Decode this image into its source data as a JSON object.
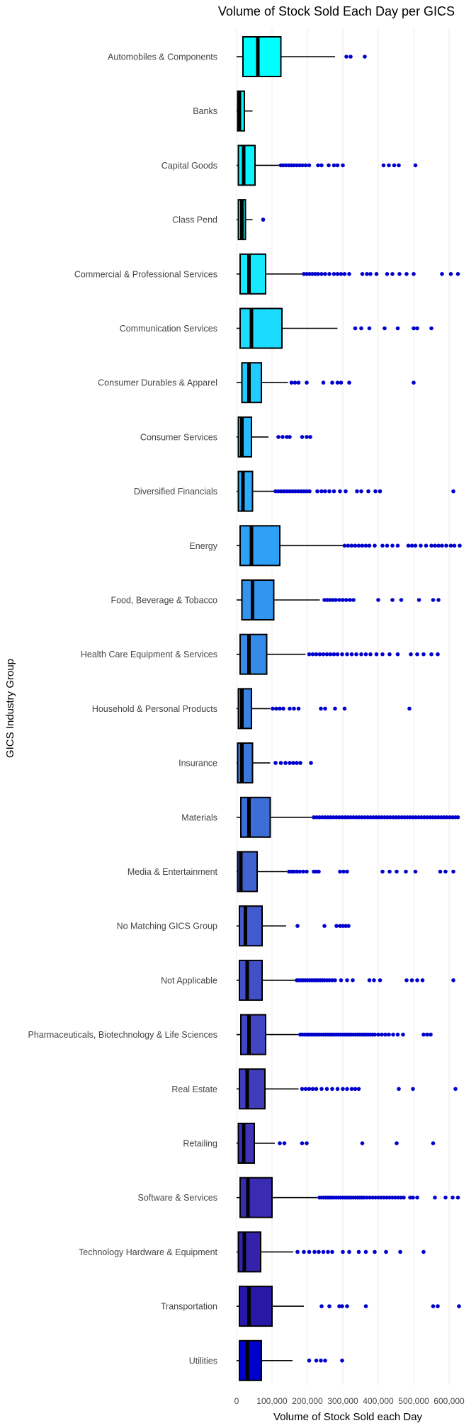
{
  "chart_data": {
    "type": "boxplot",
    "title": "Volume of Stock Sold Each Day per GICS",
    "xlabel": "Volume of Stock Sold each Day",
    "ylabel": "GICS Industry Group",
    "xlim": [
      -5000,
      680000
    ],
    "x_ticks": [
      0,
      100000,
      200000,
      300000,
      400000,
      500000,
      600000
    ],
    "x_tick_labels": [
      "0",
      "100,000",
      "200,000",
      "300,000",
      "400,000",
      "500,000",
      "600,000"
    ],
    "grid": "vertical",
    "outlier_color": "#0000cc",
    "categories": [
      {
        "name": "Automobiles & Components",
        "color": "#00ffff",
        "q1": 18000,
        "median": 60000,
        "q3": 125000,
        "whisker_low": 0,
        "whisker_high": 278000,
        "outliers": [
          310000,
          322000,
          362000
        ]
      },
      {
        "name": "Banks",
        "color": "#05faff",
        "q1": 3000,
        "median": 8000,
        "q3": 22000,
        "whisker_low": 0,
        "whisker_high": 45000,
        "outliers": []
      },
      {
        "name": "Capital Goods",
        "color": "#0af4ff",
        "q1": 5000,
        "median": 20000,
        "q3": 52000,
        "whisker_low": 0,
        "whisker_high": 120000,
        "outliers": [
          125000,
          132000,
          140000,
          148000,
          155000,
          162000,
          170000,
          178000,
          186000,
          195000,
          205000,
          230000,
          240000,
          260000,
          275000,
          285000,
          300000,
          415000,
          430000,
          445000,
          458000,
          505000
        ]
      },
      {
        "name": "Class Pend",
        "color": "#10efff",
        "q1": 5000,
        "median": 15000,
        "q3": 25000,
        "whisker_low": 0,
        "whisker_high": 45000,
        "outliers": [
          75000
        ]
      },
      {
        "name": "Commercial & Professional Services",
        "color": "#15e8ff",
        "q1": 10000,
        "median": 35000,
        "q3": 82000,
        "whisker_low": 0,
        "whisker_high": 185000,
        "outliers": [
          190000,
          198000,
          206000,
          214000,
          222000,
          230000,
          240000,
          250000,
          262000,
          275000,
          285000,
          295000,
          305000,
          318000,
          355000,
          368000,
          378000,
          395000,
          425000,
          440000,
          460000,
          480000,
          500000,
          580000,
          605000,
          625000
        ]
      },
      {
        "name": "Communication Services",
        "color": "#1bdbff",
        "q1": 10000,
        "median": 42000,
        "q3": 128000,
        "whisker_low": 0,
        "whisker_high": 285000,
        "outliers": [
          335000,
          352000,
          375000,
          418000,
          455000,
          500000,
          510000,
          550000
        ]
      },
      {
        "name": "Consumer Durables & Apparel",
        "color": "#20ccff",
        "q1": 15000,
        "median": 35000,
        "q3": 70000,
        "whisker_low": 0,
        "whisker_high": 145000,
        "outliers": [
          155000,
          165000,
          175000,
          198000,
          245000,
          270000,
          285000,
          295000,
          318000,
          500000
        ]
      },
      {
        "name": "Consumer Services",
        "color": "#25bdff",
        "q1": 5000,
        "median": 15000,
        "q3": 42000,
        "whisker_low": 0,
        "whisker_high": 90000,
        "outliers": [
          118000,
          130000,
          142000,
          150000,
          185000,
          198000,
          208000
        ]
      },
      {
        "name": "Diversified Financials",
        "color": "#2aadff",
        "q1": 5000,
        "median": 18000,
        "q3": 45000,
        "whisker_low": 0,
        "whisker_high": 105000,
        "outliers": [
          110000,
          118000,
          126000,
          134000,
          142000,
          150000,
          158000,
          166000,
          174000,
          182000,
          190000,
          198000,
          206000,
          228000,
          240000,
          250000,
          262000,
          275000,
          292000,
          308000,
          340000,
          352000,
          372000,
          392000,
          405000,
          612000
        ]
      },
      {
        "name": "Energy",
        "color": "#2ea0f5",
        "q1": 10000,
        "median": 42000,
        "q3": 122000,
        "whisker_low": 0,
        "whisker_high": 300000,
        "outliers": [
          305000,
          315000,
          325000,
          335000,
          345000,
          355000,
          365000,
          375000,
          390000,
          412000,
          425000,
          440000,
          455000,
          485000,
          495000,
          505000,
          520000,
          535000,
          550000,
          560000,
          570000,
          580000,
          592000,
          605000,
          615000,
          630000
        ]
      },
      {
        "name": "Food, Beverage & Tobacco",
        "color": "#3296ee",
        "q1": 15000,
        "median": 45000,
        "q3": 105000,
        "whisker_low": 0,
        "whisker_high": 235000,
        "outliers": [
          248000,
          256000,
          264000,
          272000,
          280000,
          290000,
          300000,
          310000,
          320000,
          330000,
          400000,
          440000,
          465000,
          515000,
          555000,
          570000
        ]
      },
      {
        "name": "Health Care Equipment & Services",
        "color": "#358ce8",
        "q1": 10000,
        "median": 35000,
        "q3": 85000,
        "whisker_low": 0,
        "whisker_high": 195000,
        "outliers": [
          205000,
          215000,
          225000,
          235000,
          245000,
          255000,
          265000,
          275000,
          285000,
          298000,
          312000,
          325000,
          338000,
          352000,
          365000,
          378000,
          395000,
          412000,
          432000,
          455000,
          492000,
          510000,
          528000,
          550000,
          568000
        ]
      },
      {
        "name": "Household & Personal Products",
        "color": "#3882e2",
        "q1": 5000,
        "median": 15000,
        "q3": 42000,
        "whisker_low": 0,
        "whisker_high": 95000,
        "outliers": [
          102000,
          112000,
          122000,
          132000,
          150000,
          162000,
          175000,
          238000,
          250000,
          278000,
          305000,
          488000
        ]
      },
      {
        "name": "Insurance",
        "color": "#3a78dd",
        "q1": 3000,
        "median": 15000,
        "q3": 45000,
        "whisker_low": 0,
        "whisker_high": 95000,
        "outliers": [
          110000,
          125000,
          138000,
          150000,
          160000,
          170000,
          180000,
          210000
        ]
      },
      {
        "name": "Materials",
        "color": "#3d6ed8",
        "q1": 12000,
        "median": 35000,
        "q3": 95000,
        "whisker_low": 0,
        "whisker_high": 212000,
        "outliers": [
          218000,
          226000,
          234000,
          242000,
          250000,
          258000,
          266000,
          274000,
          282000,
          290000,
          298000,
          306000,
          314000,
          322000,
          330000,
          338000,
          346000,
          354000,
          362000,
          370000,
          378000,
          386000,
          394000,
          402000,
          410000,
          418000,
          426000,
          434000,
          442000,
          450000,
          458000,
          466000,
          474000,
          482000,
          490000,
          498000,
          506000,
          514000,
          522000,
          530000,
          538000,
          546000,
          554000,
          562000,
          570000,
          578000,
          586000,
          594000,
          602000,
          610000,
          618000,
          625000
        ]
      },
      {
        "name": "Media & Entertainment",
        "color": "#3f64d2",
        "q1": 3000,
        "median": 12000,
        "q3": 58000,
        "whisker_low": 0,
        "whisker_high": 142000,
        "outliers": [
          148000,
          155000,
          162000,
          170000,
          178000,
          188000,
          198000,
          218000,
          225000,
          232000,
          292000,
          302000,
          312000,
          412000,
          432000,
          452000,
          478000,
          505000,
          575000,
          590000,
          612000
        ]
      },
      {
        "name": "No Matching GICS Group",
        "color": "#415acd",
        "q1": 8000,
        "median": 25000,
        "q3": 72000,
        "whisker_low": 0,
        "whisker_high": 140000,
        "outliers": [
          172000,
          248000,
          282000,
          292000,
          300000,
          308000,
          316000
        ]
      },
      {
        "name": "Not Applicable",
        "color": "#4250c8",
        "q1": 8000,
        "median": 30000,
        "q3": 72000,
        "whisker_low": 0,
        "whisker_high": 165000,
        "outliers": [
          170000,
          176000,
          182000,
          188000,
          194000,
          200000,
          206000,
          212000,
          218000,
          224000,
          230000,
          236000,
          242000,
          248000,
          255000,
          262000,
          270000,
          278000,
          295000,
          312000,
          328000,
          375000,
          388000,
          405000,
          480000,
          495000,
          510000,
          525000,
          612000
        ]
      },
      {
        "name": "Pharmaceuticals, Biotechnology & Life Sciences",
        "color": "#4246c2",
        "q1": 12000,
        "median": 35000,
        "q3": 82000,
        "whisker_low": 0,
        "whisker_high": 175000,
        "outliers": [
          180000,
          186000,
          192000,
          198000,
          204000,
          210000,
          216000,
          222000,
          228000,
          234000,
          240000,
          246000,
          252000,
          258000,
          264000,
          270000,
          276000,
          282000,
          288000,
          294000,
          300000,
          306000,
          312000,
          318000,
          324000,
          330000,
          336000,
          342000,
          348000,
          354000,
          360000,
          366000,
          372000,
          378000,
          384000,
          390000,
          400000,
          410000,
          420000,
          430000,
          442000,
          455000,
          470000,
          528000,
          538000,
          548000
        ]
      },
      {
        "name": "Real Estate",
        "color": "#403dbd",
        "q1": 8000,
        "median": 30000,
        "q3": 80000,
        "whisker_low": 0,
        "whisker_high": 175000,
        "outliers": [
          185000,
          195000,
          205000,
          215000,
          225000,
          240000,
          255000,
          270000,
          285000,
          300000,
          312000,
          325000,
          335000,
          345000,
          458000,
          498000,
          618000
        ]
      },
      {
        "name": "Retailing",
        "color": "#3e34b8",
        "q1": 5000,
        "median": 20000,
        "q3": 50000,
        "whisker_low": 0,
        "whisker_high": 108000,
        "outliers": [
          122000,
          135000,
          185000,
          198000,
          355000,
          452000,
          555000
        ]
      },
      {
        "name": "Software & Services",
        "color": "#3a2bb3",
        "q1": 10000,
        "median": 32000,
        "q3": 100000,
        "whisker_low": 0,
        "whisker_high": 228000,
        "outliers": [
          234000,
          240000,
          246000,
          252000,
          258000,
          264000,
          270000,
          276000,
          282000,
          288000,
          294000,
          300000,
          306000,
          312000,
          318000,
          324000,
          330000,
          336000,
          342000,
          348000,
          354000,
          360000,
          368000,
          376000,
          384000,
          392000,
          400000,
          408000,
          416000,
          424000,
          432000,
          440000,
          448000,
          456000,
          464000,
          472000,
          490000,
          498000,
          510000,
          560000,
          590000,
          610000,
          625000
        ]
      },
      {
        "name": "Technology Hardware & Equipment",
        "color": "#3422ad",
        "q1": 5000,
        "median": 22000,
        "q3": 68000,
        "whisker_low": 0,
        "whisker_high": 160000,
        "outliers": [
          172000,
          190000,
          205000,
          220000,
          232000,
          245000,
          258000,
          270000,
          300000,
          318000,
          345000,
          365000,
          390000,
          422000,
          462000,
          528000
        ]
      },
      {
        "name": "Transportation",
        "color": "#2818a8",
        "q1": 8000,
        "median": 35000,
        "q3": 100000,
        "whisker_low": 0,
        "whisker_high": 190000,
        "outliers": [
          240000,
          262000,
          290000,
          298000,
          312000,
          365000,
          555000,
          568000,
          628000
        ]
      },
      {
        "name": "Utilities",
        "color": "#0000cc",
        "q1": 8000,
        "median": 30000,
        "q3": 70000,
        "whisker_low": 0,
        "whisker_high": 158000,
        "outliers": [
          205000,
          225000,
          238000,
          250000,
          298000
        ]
      }
    ]
  }
}
